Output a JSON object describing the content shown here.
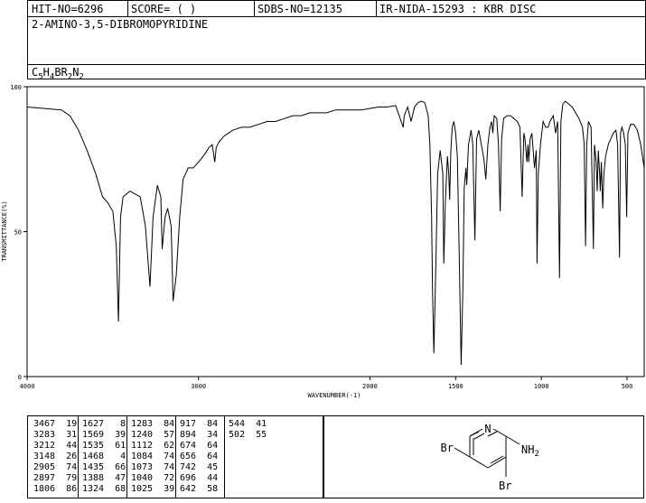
{
  "header": {
    "hit_no": "HIT-NO=6296",
    "score": "SCORE=  (   )",
    "sdbs_no": "SDBS-NO=12135",
    "ir_info": "IR-NIDA-15293 : KBR DISC"
  },
  "compound": {
    "name": "2-AMINO-3,5-DIBROMOPYRIDINE",
    "formula_parts": [
      {
        "t": "C",
        "sub": false
      },
      {
        "t": "5",
        "sub": true
      },
      {
        "t": "H",
        "sub": false
      },
      {
        "t": "4",
        "sub": true
      },
      {
        "t": "BR",
        "sub": false
      },
      {
        "t": "2",
        "sub": true
      },
      {
        "t": "N",
        "sub": false
      },
      {
        "t": "2",
        "sub": true
      }
    ]
  },
  "chart_data": {
    "type": "line",
    "xlabel": "WAVENUMBER(-1)",
    "ylabel": "TRANSMITTANCE(%)",
    "xlim": [
      4000,
      400
    ],
    "ylim": [
      0,
      100
    ],
    "x_ticks": [
      4000,
      3000,
      2000,
      1500,
      1000,
      500
    ],
    "y_ticks": [
      0,
      50,
      100
    ],
    "series": [
      {
        "points": [
          [
            4000,
            93
          ],
          [
            3900,
            92.5
          ],
          [
            3800,
            92
          ],
          [
            3750,
            90
          ],
          [
            3700,
            85
          ],
          [
            3650,
            78
          ],
          [
            3600,
            70
          ],
          [
            3560,
            62
          ],
          [
            3530,
            60
          ],
          [
            3500,
            57
          ],
          [
            3480,
            45
          ],
          [
            3467,
            19
          ],
          [
            3455,
            55
          ],
          [
            3440,
            62
          ],
          [
            3400,
            64
          ],
          [
            3370,
            63
          ],
          [
            3340,
            62
          ],
          [
            3310,
            52
          ],
          [
            3283,
            31
          ],
          [
            3265,
            55
          ],
          [
            3240,
            66
          ],
          [
            3220,
            62
          ],
          [
            3212,
            44
          ],
          [
            3195,
            55
          ],
          [
            3180,
            58
          ],
          [
            3160,
            52
          ],
          [
            3148,
            26
          ],
          [
            3130,
            35
          ],
          [
            3110,
            55
          ],
          [
            3090,
            68
          ],
          [
            3060,
            72
          ],
          [
            3030,
            72
          ],
          [
            3000,
            74
          ],
          [
            2960,
            77
          ],
          [
            2940,
            79
          ],
          [
            2920,
            80
          ],
          [
            2905,
            74
          ],
          [
            2897,
            79
          ],
          [
            2880,
            81
          ],
          [
            2850,
            83
          ],
          [
            2800,
            85
          ],
          [
            2750,
            86
          ],
          [
            2700,
            86
          ],
          [
            2650,
            87
          ],
          [
            2600,
            88
          ],
          [
            2550,
            88
          ],
          [
            2500,
            89
          ],
          [
            2450,
            90
          ],
          [
            2400,
            90
          ],
          [
            2350,
            91
          ],
          [
            2300,
            91
          ],
          [
            2250,
            91
          ],
          [
            2200,
            92
          ],
          [
            2150,
            92
          ],
          [
            2100,
            92
          ],
          [
            2050,
            92
          ],
          [
            2000,
            92.5
          ],
          [
            1950,
            93
          ],
          [
            1900,
            93
          ],
          [
            1850,
            93.5
          ],
          [
            1806,
            86
          ],
          [
            1800,
            90
          ],
          [
            1780,
            93
          ],
          [
            1760,
            88
          ],
          [
            1740,
            93
          ],
          [
            1720,
            94.5
          ],
          [
            1700,
            95
          ],
          [
            1680,
            94.5
          ],
          [
            1660,
            90
          ],
          [
            1650,
            80
          ],
          [
            1640,
            55
          ],
          [
            1635,
            30
          ],
          [
            1627,
            8
          ],
          [
            1615,
            40
          ],
          [
            1605,
            70
          ],
          [
            1590,
            78
          ],
          [
            1575,
            70
          ],
          [
            1569,
            39
          ],
          [
            1560,
            60
          ],
          [
            1548,
            76
          ],
          [
            1540,
            70
          ],
          [
            1535,
            61
          ],
          [
            1528,
            78
          ],
          [
            1520,
            86
          ],
          [
            1510,
            88
          ],
          [
            1500,
            84
          ],
          [
            1490,
            76
          ],
          [
            1480,
            45
          ],
          [
            1468,
            4
          ],
          [
            1458,
            30
          ],
          [
            1450,
            65
          ],
          [
            1440,
            72
          ],
          [
            1435,
            66
          ],
          [
            1425,
            80
          ],
          [
            1410,
            85
          ],
          [
            1400,
            80
          ],
          [
            1388,
            47
          ],
          [
            1378,
            82
          ],
          [
            1365,
            85
          ],
          [
            1350,
            80
          ],
          [
            1335,
            75
          ],
          [
            1324,
            68
          ],
          [
            1312,
            80
          ],
          [
            1300,
            86
          ],
          [
            1290,
            88
          ],
          [
            1283,
            84
          ],
          [
            1275,
            90
          ],
          [
            1260,
            89
          ],
          [
            1250,
            80
          ],
          [
            1240,
            57
          ],
          [
            1232,
            82
          ],
          [
            1220,
            89
          ],
          [
            1200,
            90
          ],
          [
            1180,
            90
          ],
          [
            1160,
            89
          ],
          [
            1140,
            88
          ],
          [
            1125,
            86
          ],
          [
            1112,
            62
          ],
          [
            1102,
            84
          ],
          [
            1095,
            82
          ],
          [
            1084,
            74
          ],
          [
            1078,
            80
          ],
          [
            1073,
            74
          ],
          [
            1065,
            82
          ],
          [
            1055,
            84
          ],
          [
            1040,
            72
          ],
          [
            1030,
            78
          ],
          [
            1025,
            39
          ],
          [
            1018,
            70
          ],
          [
            1005,
            80
          ],
          [
            990,
            88
          ],
          [
            975,
            86
          ],
          [
            960,
            86
          ],
          [
            950,
            88
          ],
          [
            930,
            90
          ],
          [
            917,
            84
          ],
          [
            905,
            88
          ],
          [
            894,
            34
          ],
          [
            886,
            88
          ],
          [
            875,
            94
          ],
          [
            860,
            95
          ],
          [
            840,
            94
          ],
          [
            820,
            93
          ],
          [
            800,
            91
          ],
          [
            780,
            89
          ],
          [
            760,
            86
          ],
          [
            750,
            80
          ],
          [
            742,
            45
          ],
          [
            735,
            80
          ],
          [
            725,
            88
          ],
          [
            710,
            86
          ],
          [
            696,
            44
          ],
          [
            690,
            80
          ],
          [
            680,
            74
          ],
          [
            674,
            64
          ],
          [
            668,
            78
          ],
          [
            660,
            70
          ],
          [
            656,
            64
          ],
          [
            650,
            74
          ],
          [
            642,
            58
          ],
          [
            635,
            70
          ],
          [
            625,
            76
          ],
          [
            610,
            80
          ],
          [
            595,
            82
          ],
          [
            580,
            84
          ],
          [
            565,
            85
          ],
          [
            555,
            80
          ],
          [
            544,
            41
          ],
          [
            538,
            84
          ],
          [
            530,
            86
          ],
          [
            520,
            84
          ],
          [
            510,
            80
          ],
          [
            502,
            55
          ],
          [
            495,
            84
          ],
          [
            480,
            87
          ],
          [
            460,
            87
          ],
          [
            440,
            85
          ],
          [
            420,
            80
          ],
          [
            400,
            72
          ]
        ]
      }
    ],
    "peaks": [
      [
        3467,
        19
      ],
      [
        3283,
        31
      ],
      [
        3212,
        44
      ],
      [
        3148,
        26
      ],
      [
        2905,
        74
      ],
      [
        2897,
        79
      ],
      [
        1806,
        86
      ],
      [
        1627,
        8
      ],
      [
        1569,
        39
      ],
      [
        1535,
        61
      ],
      [
        1468,
        4
      ],
      [
        1435,
        66
      ],
      [
        1388,
        47
      ],
      [
        1324,
        68
      ],
      [
        1283,
        84
      ],
      [
        1240,
        57
      ],
      [
        1112,
        62
      ],
      [
        1084,
        74
      ],
      [
        1073,
        74
      ],
      [
        1040,
        72
      ],
      [
        1025,
        39
      ],
      [
        917,
        84
      ],
      [
        894,
        34
      ],
      [
        674,
        64
      ],
      [
        656,
        64
      ],
      [
        742,
        45
      ],
      [
        696,
        44
      ],
      [
        642,
        58
      ],
      [
        544,
        41
      ],
      [
        502,
        55
      ]
    ],
    "peak_table": [
      [
        "3467  19",
        "3283  31",
        "3212  44",
        "3148  26",
        "2905  74",
        "2897  79",
        "1806  86"
      ],
      [
        "1627   8",
        "1569  39",
        "1535  61",
        "1468   4",
        "1435  66",
        "1388  47",
        "1324  68"
      ],
      [
        "1283  84",
        "1240  57",
        "1112  62",
        "1084  74",
        "1073  74",
        "1040  72",
        "1025  39"
      ],
      [
        "917  84",
        "894  34",
        "674  64",
        "656  64",
        "742  45",
        "696  44",
        "642  58"
      ],
      [
        "544  41",
        "502  55"
      ]
    ]
  },
  "structure": {
    "atoms": {
      "n": "N",
      "nh2": "NH2",
      "br5": "Br",
      "br3": "Br"
    }
  }
}
